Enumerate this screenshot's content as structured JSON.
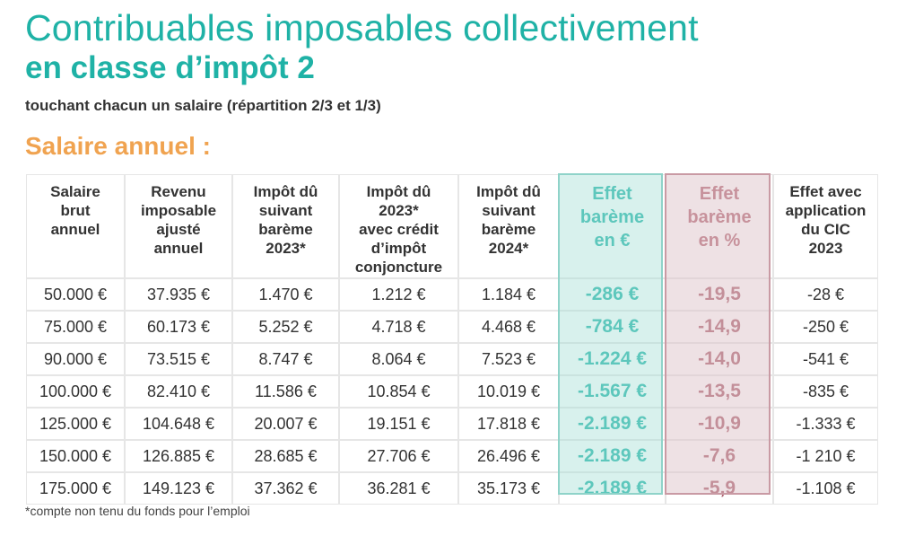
{
  "title_line1": "Contribuables imposables collectivement",
  "title_line2": "en classe d’impôt 2",
  "subtitle": "touchant chacun un salaire (répartition 2/3 et 1/3)",
  "section_title": "Salaire annuel :",
  "table": {
    "headers": [
      [
        "Salaire",
        "brut",
        "annuel"
      ],
      [
        "Revenu",
        "imposable",
        "ajusté",
        "annuel"
      ],
      [
        "Impôt dû",
        "suivant",
        "barème",
        "2023*"
      ],
      [
        "Impôt dû",
        "2023*",
        "avec crédit",
        "d’impôt",
        "conjoncture"
      ],
      [
        "Impôt dû",
        "suivant",
        "barème",
        "2024*"
      ],
      [
        "Effet",
        "barème",
        "en €"
      ],
      [
        "Effet",
        "barème",
        "en %"
      ],
      [
        "Effet avec",
        "application",
        "du CIC",
        "2023"
      ]
    ],
    "rows": [
      [
        "50.000 €",
        "37.935 €",
        "1.470 €",
        "1.212 €",
        "1.184 €",
        "-286 €",
        "-19,5",
        "-28 €"
      ],
      [
        "75.000 €",
        "60.173 €",
        "5.252 €",
        "4.718 €",
        "4.468 €",
        "-784 €",
        "-14,9",
        "-250 €"
      ],
      [
        "90.000 €",
        "73.515 €",
        "8.747 €",
        "8.064 €",
        "7.523 €",
        "-1.224 €",
        "-14,0",
        "-541 €"
      ],
      [
        "100.000 €",
        "82.410 €",
        "11.586 €",
        "10.854 €",
        "10.019 €",
        "-1.567 €",
        "-13,5",
        "-835 €"
      ],
      [
        "125.000 €",
        "104.648 €",
        "20.007 €",
        "19.151 €",
        "17.818 €",
        "-2.189 €",
        "-10,9",
        "-1.333 €"
      ],
      [
        "150.000 €",
        "126.885 €",
        "28.685 €",
        "27.706 €",
        "26.496 €",
        "-2.189 €",
        "-7,6",
        "-1 210 €"
      ],
      [
        "175.000 €",
        "149.123 €",
        "37.362 €",
        "36.281 €",
        "35.173 €",
        "-2.189 €",
        "-5,9",
        "-1.108 €"
      ]
    ]
  },
  "footnote": "*compte non tenu du fonds pour l’emploi",
  "colors": {
    "teal": "#1fb2a6",
    "orange": "#f0a350",
    "rose": "#b0606e"
  }
}
